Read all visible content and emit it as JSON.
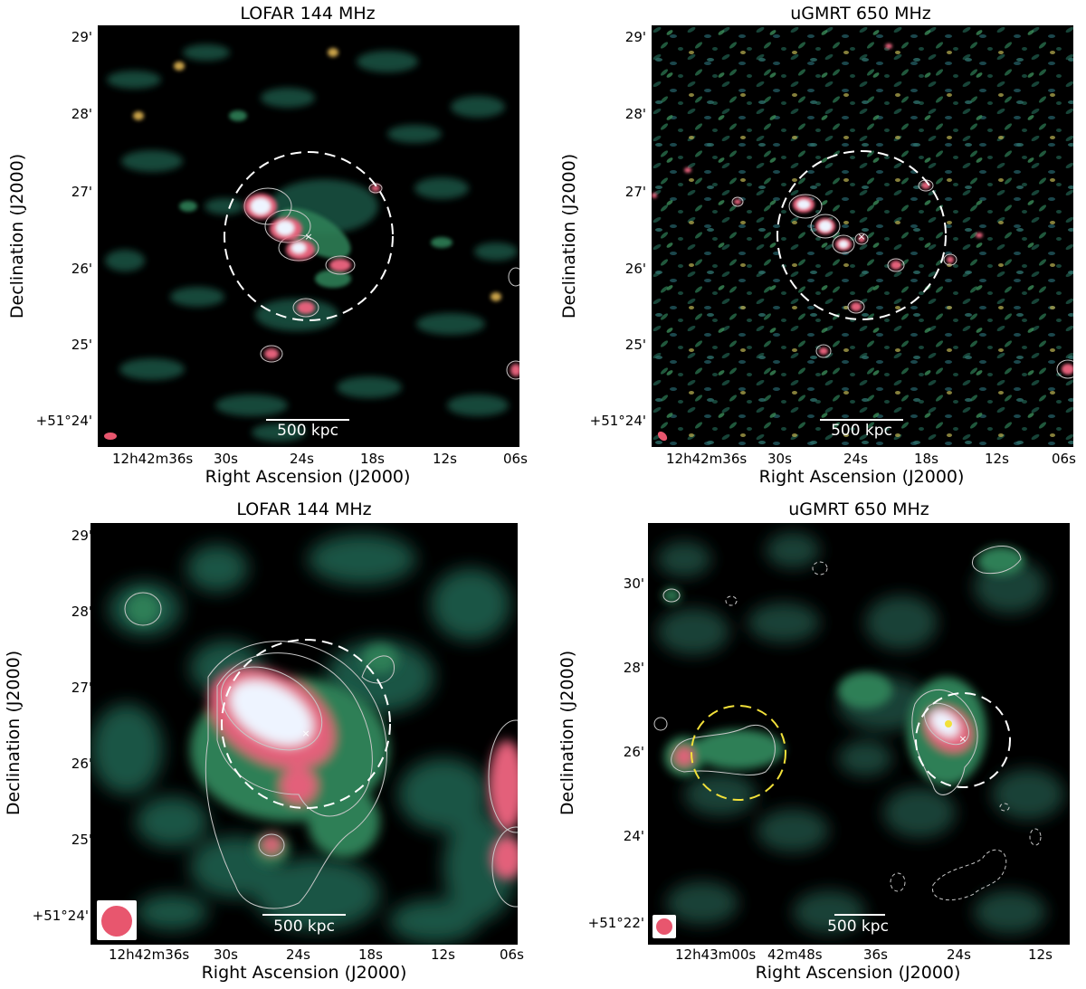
{
  "panels": [
    {
      "title": "LOFAR 144 MHz",
      "xlabel": "Right Ascension (J2000)",
      "ylabel": "Declination (J2000)",
      "yticks": [
        "29'",
        "28'",
        "27'",
        "26'",
        "25'",
        "+51°24'"
      ],
      "xticks": [
        "12h42m36s",
        "30s",
        "24s",
        "18s",
        "12s",
        "06s"
      ],
      "scale_label": "500 kpc"
    },
    {
      "title": "uGMRT 650 MHz",
      "xlabel": "Right Ascension (J2000)",
      "ylabel": "Declination (J2000)",
      "yticks": [
        "29'",
        "28'",
        "27'",
        "26'",
        "25'",
        "+51°24'"
      ],
      "xticks": [
        "12h42m36s",
        "30s",
        "24s",
        "18s",
        "12s",
        "06s"
      ],
      "scale_label": "500 kpc"
    },
    {
      "title": "LOFAR 144 MHz",
      "xlabel": "Right Ascension (J2000)",
      "ylabel": "Declination (J2000)",
      "yticks": [
        "29'",
        "28'",
        "27'",
        "26'",
        "25'",
        "+51°24'"
      ],
      "xticks": [
        "12h42m36s",
        "30s",
        "24s",
        "18s",
        "12s",
        "06s"
      ],
      "scale_label": "500 kpc"
    },
    {
      "title": "uGMRT 650 MHz",
      "xlabel": "Right Ascension (J2000)",
      "ylabel": "Declination (J2000)",
      "yticks": [
        "30'",
        "28'",
        "26'",
        "24'",
        "+51°22'"
      ],
      "xticks": [
        "12h43m00s",
        "42m48s",
        "36s",
        "24s",
        "12s"
      ],
      "scale_label": "500 kpc"
    }
  ],
  "colors": {
    "background": "#000000",
    "emission_low": "#1f5a4a",
    "emission_mid": "#2e7f56",
    "emission_high": "#e3607a",
    "emission_peak": "#eef4ff",
    "contour": "#c8c8c8",
    "circle_primary": "#ffffff",
    "circle_secondary": "#f2e13a",
    "beam": "#e8566e"
  }
}
